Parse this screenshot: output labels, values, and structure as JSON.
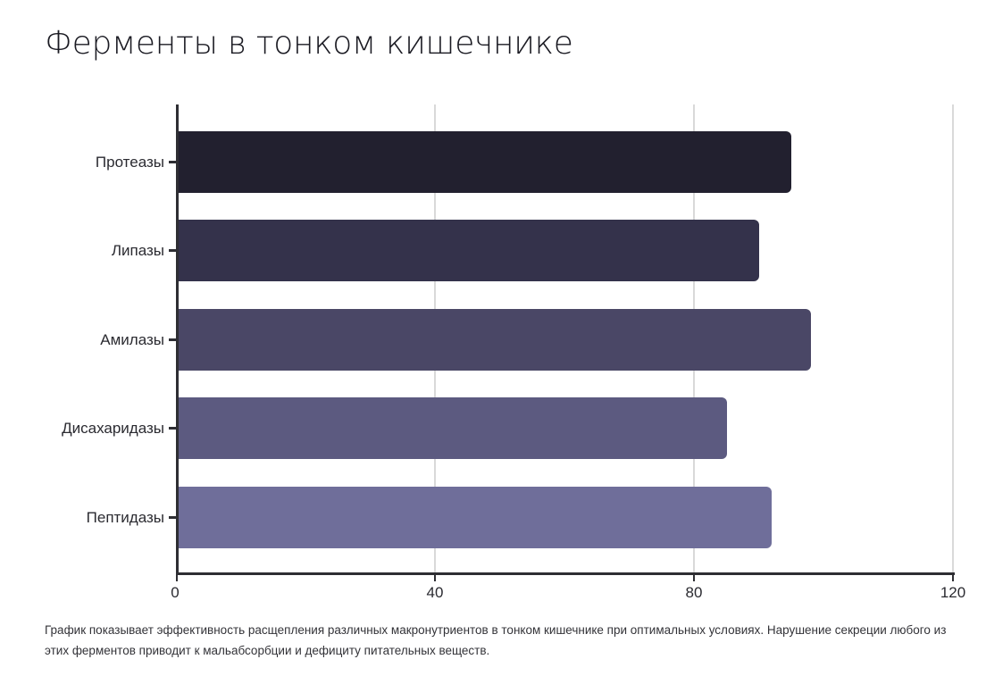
{
  "title": "Ферменты в тонком кишечнике",
  "caption": "График показывает эффективность расщепления различных макронутриентов в тонком кишечнике при оптимальных условиях. Нарушение секреции любого из этих ферментов приводит к мальабсорбции и дефициту питательных веществ.",
  "colors": {
    "bar_0": "#22202f",
    "bar_1": "#34324b",
    "bar_2": "#4a4766",
    "bar_3": "#5c5a80",
    "bar_4": "#6f6e9a",
    "axis": "#2e2e33",
    "grid": "#d9d9d9"
  },
  "x_ticks": [
    "0",
    "40",
    "80",
    "120"
  ],
  "chart_data": {
    "type": "bar",
    "orientation": "horizontal",
    "title": "Ферменты в тонком кишечнике",
    "categories": [
      "Протеазы",
      "Липазы",
      "Амилазы",
      "Дисахаридазы",
      "Пептидазы"
    ],
    "values": [
      95,
      90,
      98,
      85,
      92
    ],
    "xlabel": "",
    "ylabel": "",
    "xlim": [
      0,
      120
    ],
    "x_ticks": [
      0,
      40,
      80,
      120
    ],
    "grid": "vertical",
    "legend": "none",
    "colors": [
      "#22202f",
      "#34324b",
      "#4a4766",
      "#5c5a80",
      "#6f6e9a"
    ],
    "caption": "График показывает эффективность расщепления различных макронутриентов в тонком кишечнике при оптимальных условиях. Нарушение секреции любого из этих ферментов приводит к мальабсорбции и дефициту питательных веществ."
  }
}
